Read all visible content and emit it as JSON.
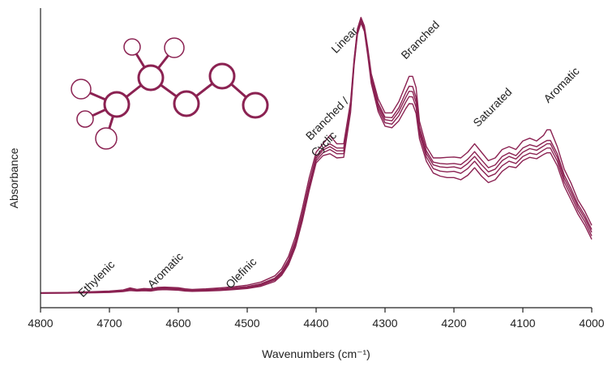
{
  "chart_data": {
    "type": "line",
    "xlabel": "Wavenumbers (cm⁻¹)",
    "ylabel": "Absorbance",
    "xlim": [
      4800,
      4000
    ],
    "x_reversed": true,
    "ylim": [
      0,
      1
    ],
    "x_ticks": [
      "4800",
      "4700",
      "4600",
      "4500",
      "4400",
      "4300",
      "4200",
      "4100",
      "4000"
    ],
    "grid": false,
    "legend": "none",
    "colors": {
      "line": "#8b2252",
      "axis": "#222222",
      "molecule": "#8b2252"
    },
    "annotations": [
      {
        "text": "Ethylenic",
        "x": 4715,
        "y": 0.05
      },
      {
        "text": "Aromatic",
        "x": 4615,
        "y": 0.08
      },
      {
        "text": "Olefinic",
        "x": 4505,
        "y": 0.07
      },
      {
        "text": "Branched /",
        "x": 4380,
        "y": 0.62
      },
      {
        "text": "Cyclic",
        "x": 4385,
        "y": 0.53
      },
      {
        "text": "Linear",
        "x": 4355,
        "y": 0.9
      },
      {
        "text": "Branched",
        "x": 4245,
        "y": 0.9
      },
      {
        "text": "Saturated",
        "x": 4140,
        "y": 0.66
      },
      {
        "text": "Aromatic",
        "x": 4040,
        "y": 0.74
      }
    ],
    "series": [
      {
        "x": [
          4800,
          4760,
          4720,
          4700,
          4680,
          4670,
          4660,
          4650,
          4640,
          4630,
          4620,
          4600,
          4590,
          4580,
          4560,
          4540,
          4520,
          4500,
          4480,
          4460,
          4450,
          4440,
          4430,
          4420,
          4410,
          4400,
          4390,
          4380,
          4370,
          4360,
          4350,
          4345,
          4340,
          4335,
          4330,
          4325,
          4320,
          4310,
          4300,
          4290,
          4280,
          4270,
          4265,
          4260,
          4255,
          4250,
          4240,
          4230,
          4220,
          4210,
          4200,
          4190,
          4180,
          4170,
          4160,
          4150,
          4140,
          4130,
          4120,
          4110,
          4100,
          4090,
          4080,
          4070,
          4065,
          4060,
          4050,
          4040,
          4030,
          4020,
          4010,
          4000
        ],
        "y": [
          0.01,
          0.011,
          0.014,
          0.016,
          0.02,
          0.027,
          0.022,
          0.025,
          0.024,
          0.029,
          0.03,
          0.028,
          0.024,
          0.022,
          0.024,
          0.027,
          0.031,
          0.037,
          0.048,
          0.07,
          0.095,
          0.14,
          0.21,
          0.31,
          0.42,
          0.51,
          0.54,
          0.57,
          0.54,
          0.54,
          0.69,
          0.84,
          0.95,
          0.99,
          0.96,
          0.88,
          0.79,
          0.7,
          0.65,
          0.65,
          0.69,
          0.75,
          0.78,
          0.78,
          0.74,
          0.62,
          0.53,
          0.49,
          0.49,
          0.492,
          0.493,
          0.49,
          0.51,
          0.54,
          0.51,
          0.48,
          0.49,
          0.52,
          0.53,
          0.52,
          0.55,
          0.56,
          0.55,
          0.57,
          0.59,
          0.59,
          0.53,
          0.45,
          0.4,
          0.34,
          0.3,
          0.25
        ]
      },
      {
        "x": [
          4800,
          4760,
          4720,
          4700,
          4680,
          4670,
          4660,
          4650,
          4640,
          4630,
          4620,
          4600,
          4590,
          4580,
          4560,
          4540,
          4520,
          4500,
          4480,
          4460,
          4450,
          4440,
          4430,
          4420,
          4410,
          4400,
          4390,
          4380,
          4370,
          4360,
          4350,
          4345,
          4340,
          4335,
          4330,
          4325,
          4320,
          4310,
          4300,
          4290,
          4280,
          4270,
          4265,
          4260,
          4255,
          4250,
          4240,
          4230,
          4220,
          4210,
          4200,
          4190,
          4180,
          4170,
          4160,
          4150,
          4140,
          4130,
          4120,
          4110,
          4100,
          4090,
          4080,
          4070,
          4065,
          4060,
          4050,
          4040,
          4030,
          4020,
          4010,
          4000
        ],
        "y": [
          0.009,
          0.01,
          0.013,
          0.014,
          0.018,
          0.024,
          0.02,
          0.022,
          0.021,
          0.026,
          0.027,
          0.025,
          0.021,
          0.019,
          0.021,
          0.023,
          0.027,
          0.032,
          0.042,
          0.062,
          0.086,
          0.128,
          0.195,
          0.292,
          0.4,
          0.495,
          0.525,
          0.54,
          0.525,
          0.525,
          0.68,
          0.835,
          0.945,
          0.985,
          0.955,
          0.872,
          0.78,
          0.685,
          0.635,
          0.633,
          0.668,
          0.722,
          0.745,
          0.744,
          0.705,
          0.6,
          0.515,
          0.475,
          0.47,
          0.468,
          0.47,
          0.466,
          0.485,
          0.512,
          0.483,
          0.455,
          0.465,
          0.495,
          0.508,
          0.498,
          0.525,
          0.537,
          0.53,
          0.545,
          0.552,
          0.552,
          0.505,
          0.43,
          0.38,
          0.325,
          0.285,
          0.235
        ]
      },
      {
        "x": [
          4800,
          4760,
          4720,
          4700,
          4680,
          4670,
          4660,
          4650,
          4640,
          4630,
          4620,
          4600,
          4590,
          4580,
          4560,
          4540,
          4520,
          4500,
          4480,
          4460,
          4450,
          4440,
          4430,
          4420,
          4410,
          4400,
          4390,
          4380,
          4370,
          4360,
          4350,
          4345,
          4340,
          4335,
          4330,
          4325,
          4320,
          4310,
          4300,
          4290,
          4280,
          4270,
          4265,
          4260,
          4255,
          4250,
          4240,
          4230,
          4220,
          4210,
          4200,
          4190,
          4180,
          4170,
          4160,
          4150,
          4140,
          4130,
          4120,
          4110,
          4100,
          4090,
          4080,
          4070,
          4065,
          4060,
          4050,
          4040,
          4030,
          4020,
          4010,
          4000
        ],
        "y": [
          0.009,
          0.01,
          0.012,
          0.013,
          0.017,
          0.022,
          0.019,
          0.021,
          0.02,
          0.024,
          0.025,
          0.023,
          0.02,
          0.018,
          0.02,
          0.022,
          0.026,
          0.031,
          0.04,
          0.059,
          0.082,
          0.123,
          0.188,
          0.283,
          0.392,
          0.488,
          0.518,
          0.53,
          0.515,
          0.515,
          0.672,
          0.83,
          0.94,
          0.98,
          0.95,
          0.866,
          0.772,
          0.676,
          0.626,
          0.622,
          0.655,
          0.705,
          0.727,
          0.726,
          0.688,
          0.588,
          0.505,
          0.465,
          0.458,
          0.456,
          0.458,
          0.452,
          0.47,
          0.495,
          0.466,
          0.44,
          0.45,
          0.48,
          0.495,
          0.486,
          0.51,
          0.523,
          0.517,
          0.532,
          0.54,
          0.54,
          0.492,
          0.418,
          0.368,
          0.315,
          0.275,
          0.225
        ]
      },
      {
        "x": [
          4800,
          4760,
          4720,
          4700,
          4680,
          4670,
          4660,
          4650,
          4640,
          4630,
          4620,
          4600,
          4590,
          4580,
          4560,
          4540,
          4520,
          4500,
          4480,
          4460,
          4450,
          4440,
          4430,
          4420,
          4410,
          4400,
          4390,
          4380,
          4370,
          4360,
          4350,
          4345,
          4340,
          4335,
          4330,
          4325,
          4320,
          4310,
          4300,
          4290,
          4280,
          4270,
          4265,
          4260,
          4255,
          4250,
          4240,
          4230,
          4220,
          4210,
          4200,
          4190,
          4180,
          4170,
          4160,
          4150,
          4140,
          4130,
          4120,
          4110,
          4100,
          4090,
          4080,
          4070,
          4065,
          4060,
          4050,
          4040,
          4030,
          4020,
          4010,
          4000
        ],
        "y": [
          0.008,
          0.009,
          0.011,
          0.012,
          0.015,
          0.02,
          0.017,
          0.019,
          0.018,
          0.022,
          0.023,
          0.021,
          0.018,
          0.017,
          0.018,
          0.02,
          0.024,
          0.028,
          0.037,
          0.055,
          0.077,
          0.116,
          0.18,
          0.273,
          0.382,
          0.48,
          0.508,
          0.52,
          0.505,
          0.505,
          0.662,
          0.825,
          0.935,
          0.975,
          0.945,
          0.86,
          0.765,
          0.666,
          0.615,
          0.61,
          0.64,
          0.688,
          0.708,
          0.707,
          0.67,
          0.575,
          0.493,
          0.452,
          0.443,
          0.44,
          0.442,
          0.435,
          0.452,
          0.478,
          0.448,
          0.423,
          0.433,
          0.462,
          0.478,
          0.47,
          0.495,
          0.507,
          0.502,
          0.518,
          0.525,
          0.525,
          0.478,
          0.405,
          0.355,
          0.303,
          0.263,
          0.212
        ]
      },
      {
        "x": [
          4800,
          4760,
          4720,
          4700,
          4680,
          4670,
          4660,
          4650,
          4640,
          4630,
          4620,
          4600,
          4590,
          4580,
          4560,
          4540,
          4520,
          4500,
          4480,
          4460,
          4450,
          4440,
          4430,
          4420,
          4410,
          4400,
          4390,
          4380,
          4370,
          4360,
          4350,
          4345,
          4340,
          4335,
          4330,
          4325,
          4320,
          4310,
          4300,
          4290,
          4280,
          4270,
          4265,
          4260,
          4255,
          4250,
          4240,
          4230,
          4220,
          4210,
          4200,
          4190,
          4180,
          4170,
          4160,
          4150,
          4140,
          4130,
          4120,
          4110,
          4100,
          4090,
          4080,
          4070,
          4065,
          4060,
          4050,
          4040,
          4030,
          4020,
          4010,
          4000
        ],
        "y": [
          0.008,
          0.009,
          0.01,
          0.011,
          0.014,
          0.018,
          0.016,
          0.017,
          0.016,
          0.02,
          0.021,
          0.019,
          0.016,
          0.015,
          0.016,
          0.018,
          0.021,
          0.025,
          0.033,
          0.05,
          0.072,
          0.11,
          0.172,
          0.265,
          0.375,
          0.472,
          0.498,
          0.505,
          0.49,
          0.492,
          0.652,
          0.818,
          0.93,
          0.97,
          0.94,
          0.852,
          0.755,
          0.655,
          0.603,
          0.597,
          0.622,
          0.665,
          0.683,
          0.682,
          0.648,
          0.558,
          0.478,
          0.436,
          0.425,
          0.42,
          0.42,
          0.412,
          0.428,
          0.455,
          0.425,
          0.402,
          0.412,
          0.442,
          0.46,
          0.455,
          0.48,
          0.492,
          0.487,
          0.502,
          0.508,
          0.508,
          0.462,
          0.39,
          0.34,
          0.29,
          0.25,
          0.2
        ]
      }
    ]
  }
}
